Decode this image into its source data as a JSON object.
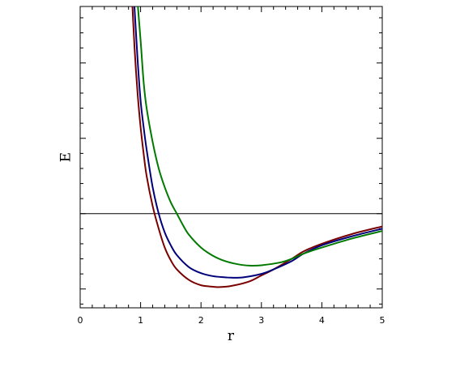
{
  "chart_data": {
    "type": "line",
    "title": "",
    "xlabel": "r",
    "ylabel": "E",
    "xlim": [
      0,
      5
    ],
    "ylim": [
      -1.25,
      2.75
    ],
    "grid": false,
    "legend": "none",
    "x_ticks": [
      0,
      1,
      2,
      3,
      4,
      5
    ],
    "x_tick_labels": [
      "0",
      "1",
      "2",
      "3",
      "4",
      "5"
    ],
    "y_tick_labels_shown": false,
    "reference_line": {
      "y": 0,
      "color": "#000000"
    },
    "series": [
      {
        "color": "#7a0000",
        "x": [
          0.85,
          0.9,
          0.95,
          1.0,
          1.05,
          1.1,
          1.2,
          1.3,
          1.4,
          1.5,
          1.6,
          1.8,
          2.0,
          2.2,
          2.3,
          2.5,
          2.8,
          3.0,
          3.2,
          3.5,
          3.7,
          4.0,
          4.5,
          5.0
        ],
        "y": [
          3.0,
          2.2,
          1.6,
          1.15,
          0.8,
          0.5,
          0.1,
          -0.2,
          -0.45,
          -0.62,
          -0.74,
          -0.88,
          -0.95,
          -0.97,
          -0.975,
          -0.96,
          -0.9,
          -0.82,
          -0.74,
          -0.6,
          -0.5,
          -0.4,
          -0.27,
          -0.17
        ]
      },
      {
        "color": "#00007a",
        "x": [
          0.88,
          0.95,
          1.0,
          1.05,
          1.1,
          1.2,
          1.3,
          1.4,
          1.5,
          1.6,
          1.8,
          2.0,
          2.2,
          2.4,
          2.5,
          2.7,
          3.0,
          3.2,
          3.5,
          3.7,
          4.0,
          4.5,
          5.0
        ],
        "y": [
          3.0,
          2.05,
          1.5,
          1.15,
          0.85,
          0.35,
          0.0,
          -0.25,
          -0.42,
          -0.55,
          -0.71,
          -0.79,
          -0.83,
          -0.845,
          -0.85,
          -0.845,
          -0.8,
          -0.74,
          -0.63,
          -0.53,
          -0.42,
          -0.3,
          -0.2
        ]
      },
      {
        "color": "#007a00",
        "x": [
          0.93,
          1.0,
          1.05,
          1.1,
          1.2,
          1.3,
          1.4,
          1.5,
          1.6,
          1.7,
          1.8,
          2.0,
          2.2,
          2.4,
          2.6,
          2.8,
          3.0,
          3.3,
          3.5,
          3.7,
          4.0,
          4.5,
          5.0
        ],
        "y": [
          3.0,
          2.3,
          1.75,
          1.4,
          0.95,
          0.6,
          0.35,
          0.15,
          0.0,
          -0.15,
          -0.28,
          -0.45,
          -0.56,
          -0.63,
          -0.67,
          -0.69,
          -0.685,
          -0.65,
          -0.6,
          -0.53,
          -0.45,
          -0.33,
          -0.23
        ]
      }
    ]
  }
}
